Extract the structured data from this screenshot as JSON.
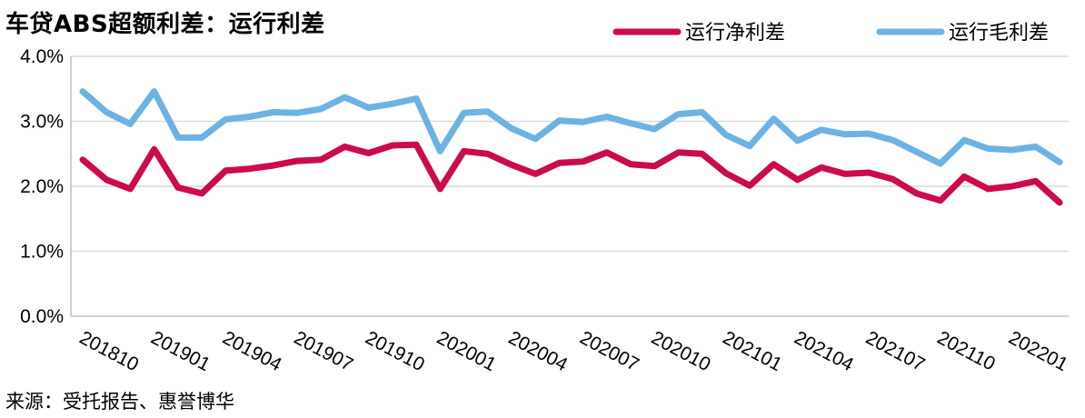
{
  "chart_data": {
    "type": "line",
    "title": "车贷ABS超额利差：运行利差",
    "source": "来源：受托报告、惠誉博华",
    "ylim": [
      0,
      4
    ],
    "y_ticks": [
      "0.0%",
      "1.0%",
      "2.0%",
      "3.0%",
      "4.0%"
    ],
    "x_tick_labels": [
      "201810",
      "201901",
      "201904",
      "201907",
      "201910",
      "202001",
      "202004",
      "202007",
      "202010",
      "202101",
      "202104",
      "202107",
      "202110",
      "202201"
    ],
    "grid": true,
    "legend_position": "top-right",
    "series": [
      {
        "name": "运行净利差",
        "color": "#cc0a4c",
        "values": [
          2.41,
          2.1,
          1.96,
          2.57,
          1.98,
          1.89,
          2.24,
          2.27,
          2.32,
          2.39,
          2.41,
          2.61,
          2.51,
          2.63,
          2.64,
          1.96,
          2.54,
          2.5,
          2.33,
          2.19,
          2.36,
          2.38,
          2.52,
          2.34,
          2.31,
          2.52,
          2.5,
          2.2,
          2.01,
          2.34,
          2.1,
          2.29,
          2.19,
          2.21,
          2.11,
          1.89,
          1.78,
          2.15,
          1.96,
          2.0,
          2.08,
          1.75
        ]
      },
      {
        "name": "运行毛利差",
        "color": "#6cb3e4",
        "values": [
          3.46,
          3.14,
          2.96,
          3.46,
          2.75,
          2.75,
          3.03,
          3.07,
          3.14,
          3.13,
          3.19,
          3.37,
          3.21,
          3.27,
          3.35,
          2.54,
          3.13,
          3.15,
          2.89,
          2.73,
          3.01,
          2.99,
          3.07,
          2.97,
          2.88,
          3.11,
          3.14,
          2.79,
          2.62,
          3.04,
          2.7,
          2.87,
          2.8,
          2.81,
          2.71,
          2.53,
          2.35,
          2.71,
          2.58,
          2.56,
          2.61,
          2.37
        ]
      }
    ]
  }
}
